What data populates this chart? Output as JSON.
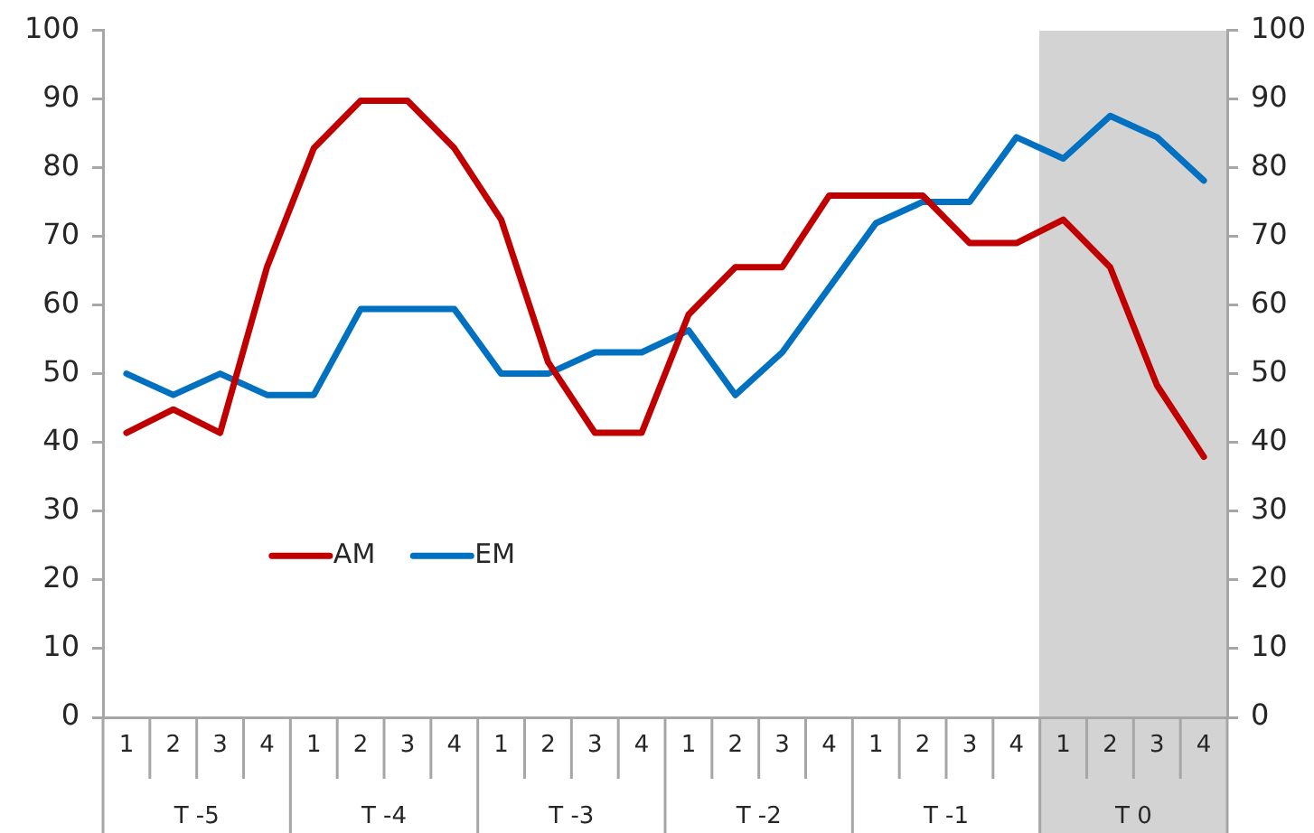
{
  "chart_data": {
    "type": "line",
    "categories": [
      "1",
      "2",
      "3",
      "4",
      "1",
      "2",
      "3",
      "4",
      "1",
      "2",
      "3",
      "4",
      "1",
      "2",
      "3",
      "4",
      "1",
      "2",
      "3",
      "4",
      "1",
      "2",
      "3",
      "4"
    ],
    "series": [
      {
        "name": "AM",
        "color": "#c00000",
        "values": [
          41.4,
          44.8,
          41.4,
          65.5,
          82.8,
          89.7,
          89.7,
          82.8,
          72.4,
          51.7,
          41.4,
          41.4,
          58.6,
          65.5,
          65.5,
          75.9,
          75.9,
          75.9,
          69.0,
          69.0,
          72.4,
          65.5,
          48.3,
          37.9
        ]
      },
      {
        "name": "EM",
        "color": "#0070c0",
        "values": [
          50,
          46.9,
          50,
          46.9,
          46.9,
          59.4,
          59.4,
          59.4,
          50,
          50,
          53.1,
          53.1,
          56.3,
          46.9,
          53.1,
          62.5,
          71.9,
          75,
          75,
          84.4,
          81.3,
          87.5,
          84.4,
          78.1
        ]
      }
    ],
    "ylim": [
      0,
      100
    ],
    "yticks": [
      0,
      10,
      20,
      30,
      40,
      50,
      60,
      70,
      80,
      90,
      100
    ],
    "y2lim": [
      0,
      100
    ],
    "y2ticks": [
      0,
      10,
      20,
      30,
      40,
      50,
      60,
      70,
      80,
      90,
      100
    ],
    "annotations": [
      "T -5",
      "T -4",
      "T -3",
      "T -2",
      "T -1",
      "T 0"
    ],
    "legend": "bottom left"
  }
}
